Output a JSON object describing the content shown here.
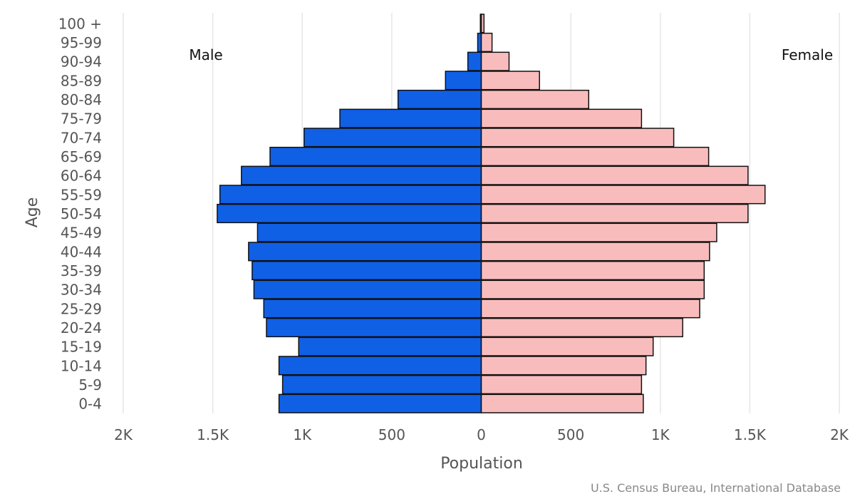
{
  "chart_data": {
    "type": "bar",
    "orientation": "horizontal",
    "categories": [
      "100 +",
      "95-99",
      "90-94",
      "85-89",
      "80-84",
      "75-79",
      "70-74",
      "65-69",
      "60-64",
      "55-59",
      "50-54",
      "45-49",
      "40-44",
      "35-39",
      "30-34",
      "25-29",
      "20-24",
      "15-19",
      "10-14",
      "5-9",
      "0-4"
    ],
    "series": [
      {
        "name": "Male",
        "color": "#1060e6",
        "values": [
          5,
          20,
          75,
          200,
          465,
          790,
          990,
          1180,
          1340,
          1460,
          1475,
          1250,
          1300,
          1280,
          1270,
          1215,
          1200,
          1020,
          1130,
          1110,
          1130
        ]
      },
      {
        "name": "Female",
        "color": "#f9bcbc",
        "values": [
          15,
          60,
          155,
          325,
          600,
          895,
          1075,
          1270,
          1490,
          1585,
          1490,
          1315,
          1275,
          1245,
          1245,
          1220,
          1125,
          960,
          920,
          895,
          905
        ]
      }
    ],
    "xlabel": "Population",
    "ylabel": "Age",
    "xlim": [
      -2000,
      2000
    ],
    "xticks": [
      -2000,
      -1500,
      -1000,
      -500,
      0,
      500,
      1000,
      1500,
      2000
    ],
    "xtick_labels": [
      "2K",
      "1.5K",
      "1K",
      "500",
      "0",
      "500",
      "1K",
      "1.5K",
      "2K"
    ],
    "grid": true,
    "side_labels": {
      "left": "Male",
      "right": "Female"
    },
    "credits": "U.S. Census Bureau, International Database"
  }
}
